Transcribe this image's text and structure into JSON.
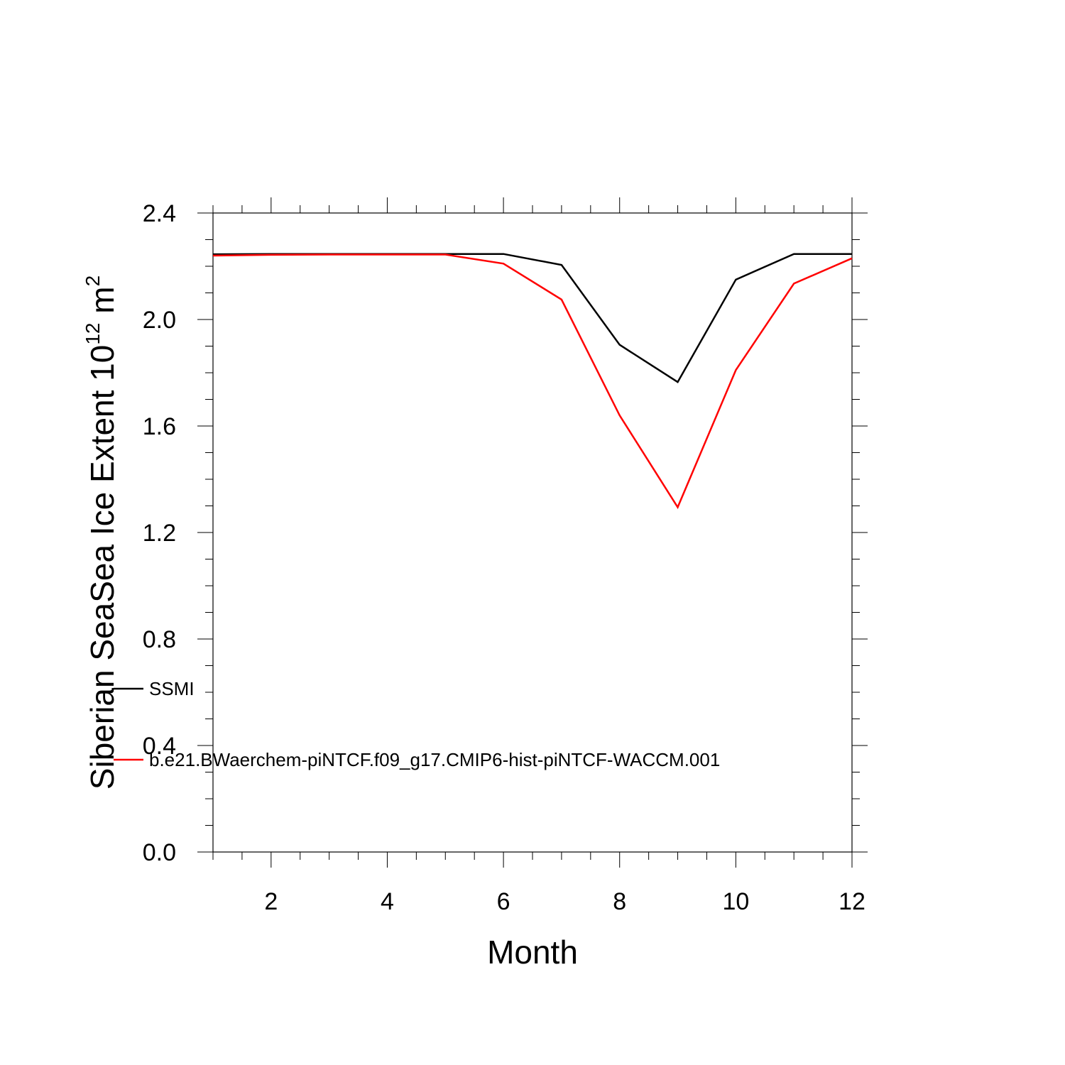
{
  "chart_data": {
    "type": "line",
    "xlabel": "Month",
    "ylabel_main": "Siberian SeaSea Ice Extent 10",
    "ylabel_sup": "12",
    "ylabel_unit": " m",
    "ylabel_unit_sup": "2",
    "xlim": [
      1,
      12
    ],
    "ylim": [
      0,
      2.4
    ],
    "x_ticks": [
      2,
      4,
      6,
      8,
      10,
      12
    ],
    "x_tick_labels": [
      "2",
      "4",
      "6",
      "8",
      "10",
      "12"
    ],
    "y_ticks": [
      0,
      0.4,
      0.8,
      1.2,
      1.6,
      2.0,
      2.4
    ],
    "y_tick_labels": [
      "0.0",
      "0.4",
      "0.8",
      "1.2",
      "1.6",
      "2.0",
      "2.4"
    ],
    "x": [
      1,
      2,
      3,
      4,
      5,
      6,
      7,
      8,
      9,
      10,
      11,
      12
    ],
    "series": [
      {
        "name": "SSMI",
        "color": "#000000",
        "values": [
          2.245,
          2.246,
          2.246,
          2.246,
          2.246,
          2.246,
          2.205,
          1.905,
          1.765,
          2.15,
          2.246,
          2.246
        ]
      },
      {
        "name": "b.e21.BWaerchem-piNTCF.f09_g17.CMIP6-hist-piNTCF-WACCM.001",
        "color": "#ff0000",
        "values": [
          2.24,
          2.243,
          2.244,
          2.244,
          2.244,
          2.21,
          2.075,
          1.64,
          1.295,
          1.81,
          2.135,
          2.23
        ]
      }
    ],
    "grid": false,
    "legend_position": "lower-left"
  }
}
